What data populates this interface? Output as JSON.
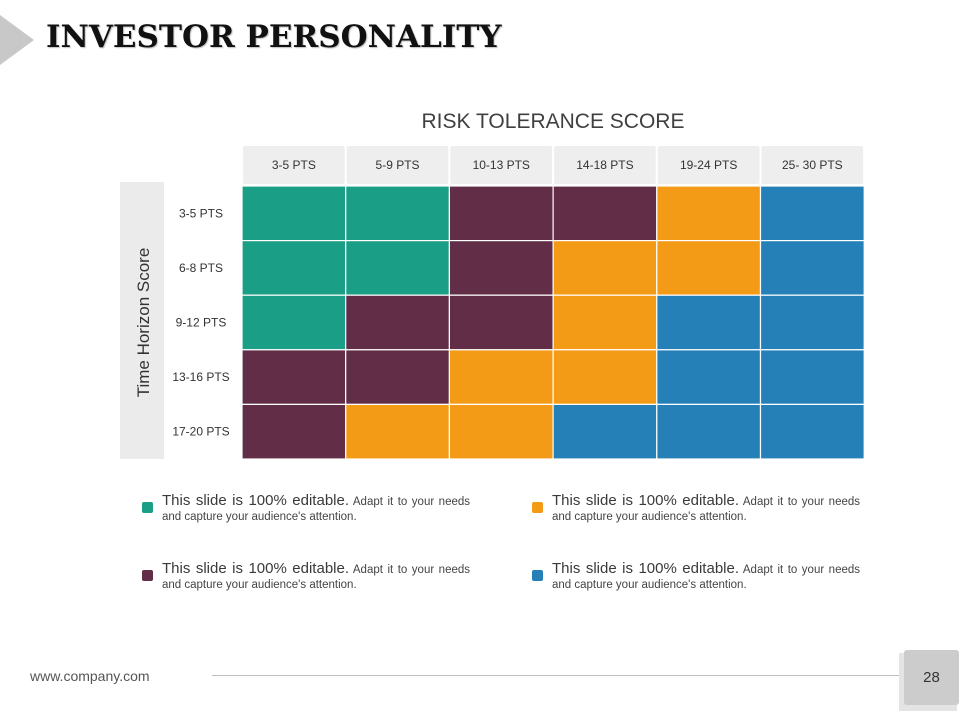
{
  "slide": {
    "title": "INVESTOR PERSONALITY",
    "footer_url": "www.company.com",
    "page_number": "28"
  },
  "chart_data": {
    "type": "heatmap",
    "title": "RISK TOLERANCE SCORE",
    "xlabel": "RISK TOLERANCE SCORE",
    "ylabel": "Time Horizon Score",
    "columns": [
      "3-5 PTS",
      "5-9 PTS",
      "10-13 PTS",
      "14-18 PTS",
      "19-24 PTS",
      "25-  30 PTS"
    ],
    "rows": [
      "3-5 PTS",
      "6-8 PTS",
      "9-12 PTS",
      "13-16 PTS",
      "17-20 PTS"
    ],
    "category_colors": {
      "green": "#1a9e85",
      "maroon": "#622d47",
      "orange": "#f39b17",
      "blue": "#2680b8"
    },
    "cells": [
      [
        "green",
        "green",
        "maroon",
        "maroon",
        "orange",
        "blue"
      ],
      [
        "green",
        "green",
        "maroon",
        "orange",
        "orange",
        "blue"
      ],
      [
        "green",
        "maroon",
        "maroon",
        "orange",
        "blue",
        "blue"
      ],
      [
        "maroon",
        "maroon",
        "orange",
        "orange",
        "blue",
        "blue"
      ],
      [
        "maroon",
        "orange",
        "orange",
        "blue",
        "blue",
        "blue"
      ]
    ]
  },
  "legend": [
    {
      "color": "green",
      "lead": "This slide is 100% editable.",
      "text": "Adapt it to your needs and capture your audience's attention."
    },
    {
      "color": "orange",
      "lead": "This slide is 100% editable.",
      "text": "Adapt it to your needs and capture your audience's attention."
    },
    {
      "color": "maroon",
      "lead": "This slide is 100% editable.",
      "text": "Adapt it to your needs and capture your audience's attention."
    },
    {
      "color": "blue",
      "lead": "This slide is 100% editable.",
      "text": "Adapt it to your needs and capture your audience's attention."
    }
  ]
}
